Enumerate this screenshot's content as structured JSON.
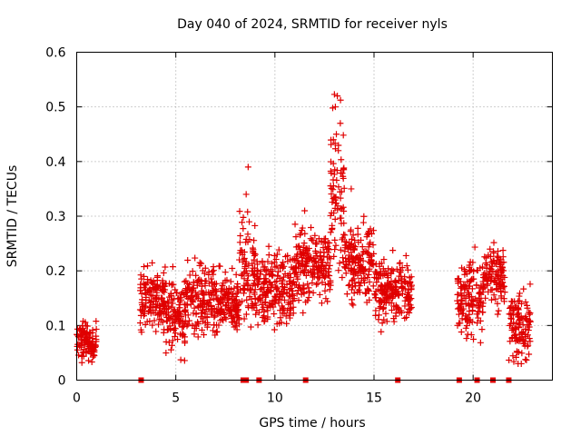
{
  "chart_data": {
    "type": "scatter",
    "title": "Day 040 of 2024, SRMTID for receiver nyls",
    "xlabel": "GPS time / hours",
    "ylabel": "SRMTID / TECUs",
    "xlim": [
      0,
      24
    ],
    "ylim": [
      0,
      0.6
    ],
    "grid": true,
    "x_ticks": [
      0,
      5,
      10,
      15,
      20
    ],
    "x_tick_labels": [
      "0",
      "5",
      "10",
      "15",
      "20"
    ],
    "y_ticks": [
      0,
      0.1,
      0.2,
      0.3,
      0.4,
      0.5,
      0.6
    ],
    "y_tick_labels": [
      "0",
      "0.1",
      "0.2",
      "0.3",
      "0.4",
      "0.5",
      "0.6"
    ],
    "marker": "plus",
    "color": "#e00000",
    "series": [
      {
        "name": "SRMTID",
        "segments": [
          {
            "t_start": 0.0,
            "t_end": 1.0,
            "center": 0.07,
            "spread": 0.03
          },
          {
            "t_start": 3.2,
            "t_end": 4.5,
            "center": 0.15,
            "spread": 0.05
          },
          {
            "t_start": 4.5,
            "t_end": 5.5,
            "center": 0.12,
            "spread": 0.06
          },
          {
            "t_start": 5.5,
            "t_end": 6.5,
            "center": 0.15,
            "spread": 0.06
          },
          {
            "t_start": 6.5,
            "t_end": 8.2,
            "center": 0.14,
            "spread": 0.05
          },
          {
            "t_start": 8.2,
            "t_end": 9.0,
            "center": 0.2,
            "spread": 0.08
          },
          {
            "t_start": 9.0,
            "t_end": 11.0,
            "center": 0.17,
            "spread": 0.06
          },
          {
            "t_start": 11.0,
            "t_end": 12.8,
            "center": 0.21,
            "spread": 0.06
          },
          {
            "t_start": 12.8,
            "t_end": 13.5,
            "center": 0.33,
            "spread": 0.12
          },
          {
            "t_start": 13.5,
            "t_end": 15.0,
            "center": 0.22,
            "spread": 0.06
          },
          {
            "t_start": 15.0,
            "t_end": 16.9,
            "center": 0.16,
            "spread": 0.05
          },
          {
            "t_start": 19.2,
            "t_end": 20.5,
            "center": 0.15,
            "spread": 0.06
          },
          {
            "t_start": 20.5,
            "t_end": 21.6,
            "center": 0.19,
            "spread": 0.05
          },
          {
            "t_start": 21.8,
            "t_end": 22.9,
            "center": 0.1,
            "spread": 0.06
          }
        ],
        "peaks": [
          {
            "x": 8.65,
            "y": 0.39
          },
          {
            "x": 13.15,
            "y": 0.52
          },
          {
            "x": 13.05,
            "y": 0.5
          },
          {
            "x": 13.3,
            "y": 0.47
          },
          {
            "x": 13.1,
            "y": 0.45
          },
          {
            "x": 12.95,
            "y": 0.44
          },
          {
            "x": 13.2,
            "y": 0.42
          },
          {
            "x": 13.85,
            "y": 0.35
          },
          {
            "x": 8.55,
            "y": 0.34
          },
          {
            "x": 11.5,
            "y": 0.31
          }
        ]
      }
    ],
    "flag_markers_x": [
      3.25,
      8.4,
      8.55,
      9.2,
      11.55,
      16.2,
      19.3,
      20.2,
      21.0,
      21.8
    ]
  }
}
